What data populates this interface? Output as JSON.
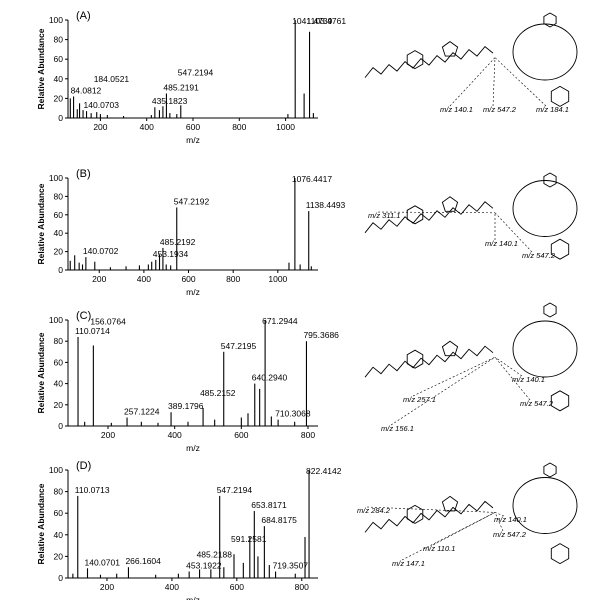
{
  "chart_data": [
    {
      "type": "bar",
      "panel_label": "(A)",
      "xlabel": "m/z",
      "ylabel": "Relative Abundance",
      "xlim": [
        60,
        1140
      ],
      "ylim": [
        0,
        100
      ],
      "xticks": [
        200,
        400,
        600,
        800,
        1000
      ],
      "yticks": [
        0,
        20,
        40,
        60,
        80,
        100
      ],
      "peaks": [
        {
          "mz": 84.0812,
          "intensity": 22,
          "label": "84.0812"
        },
        {
          "mz": 140.0703,
          "intensity": 7,
          "label": "140.0703"
        },
        {
          "mz": 184.0521,
          "intensity": 6,
          "label": "184.0521"
        },
        {
          "mz": 435.1823,
          "intensity": 11,
          "label": "435.1823"
        },
        {
          "mz": 485.2191,
          "intensity": 25,
          "label": "485.2191"
        },
        {
          "mz": 547.2194,
          "intensity": 13,
          "label": "547.2194"
        },
        {
          "mz": 1041.4739,
          "intensity": 100,
          "label": "1041.4739"
        },
        {
          "mz": 1103.4761,
          "intensity": 88,
          "label": "1103.4761"
        },
        {
          "mz": 70,
          "intensity": 20
        },
        {
          "mz": 100,
          "intensity": 9
        },
        {
          "mz": 110,
          "intensity": 15
        },
        {
          "mz": 125,
          "intensity": 8
        },
        {
          "mz": 160,
          "intensity": 5
        },
        {
          "mz": 200,
          "intensity": 4
        },
        {
          "mz": 230,
          "intensity": 3
        },
        {
          "mz": 300,
          "intensity": 2
        },
        {
          "mz": 420,
          "intensity": 3
        },
        {
          "mz": 455,
          "intensity": 8
        },
        {
          "mz": 470,
          "intensity": 12
        },
        {
          "mz": 500,
          "intensity": 5
        },
        {
          "mz": 530,
          "intensity": 4
        },
        {
          "mz": 1010,
          "intensity": 4
        },
        {
          "mz": 1080,
          "intensity": 25
        },
        {
          "mz": 1120,
          "intensity": 5
        }
      ]
    },
    {
      "type": "bar",
      "panel_label": "(B)",
      "xlabel": "m/z",
      "ylabel": "Relative Abundance",
      "xlim": [
        60,
        1180
      ],
      "ylim": [
        0,
        100
      ],
      "xticks": [
        200,
        400,
        600,
        800,
        1000
      ],
      "yticks": [
        0,
        20,
        40,
        60,
        80,
        100
      ],
      "peaks": [
        {
          "mz": 140.0702,
          "intensity": 14,
          "label": "140.0702"
        },
        {
          "mz": 453.1934,
          "intensity": 11,
          "label": "453.1934"
        },
        {
          "mz": 485.2192,
          "intensity": 24,
          "label": "485.2192"
        },
        {
          "mz": 547.2192,
          "intensity": 68,
          "label": "547.2192"
        },
        {
          "mz": 1076.4417,
          "intensity": 100,
          "label": "1076.4417"
        },
        {
          "mz": 1138.4493,
          "intensity": 64,
          "label": "1138.4493"
        },
        {
          "mz": 70,
          "intensity": 10
        },
        {
          "mz": 90,
          "intensity": 16
        },
        {
          "mz": 110,
          "intensity": 8
        },
        {
          "mz": 125,
          "intensity": 6
        },
        {
          "mz": 180,
          "intensity": 9
        },
        {
          "mz": 250,
          "intensity": 3
        },
        {
          "mz": 320,
          "intensity": 4
        },
        {
          "mz": 380,
          "intensity": 5
        },
        {
          "mz": 420,
          "intensity": 6
        },
        {
          "mz": 435,
          "intensity": 9
        },
        {
          "mz": 470,
          "intensity": 17
        },
        {
          "mz": 500,
          "intensity": 6
        },
        {
          "mz": 520,
          "intensity": 5
        },
        {
          "mz": 1050,
          "intensity": 8
        },
        {
          "mz": 1100,
          "intensity": 6
        },
        {
          "mz": 1150,
          "intensity": 4
        }
      ]
    },
    {
      "type": "bar",
      "panel_label": "(C)",
      "xlabel": "m/z",
      "ylabel": "Relative Abundance",
      "xlim": [
        80,
        830
      ],
      "ylim": [
        0,
        100
      ],
      "xticks": [
        200,
        400,
        600,
        800
      ],
      "yticks": [
        0,
        20,
        40,
        60,
        80,
        100
      ],
      "peaks": [
        {
          "mz": 110.0714,
          "intensity": 84,
          "label": "110.0714"
        },
        {
          "mz": 156.0764,
          "intensity": 76,
          "label": "156.0764"
        },
        {
          "mz": 257.1224,
          "intensity": 8,
          "label": "257.1224"
        },
        {
          "mz": 389.1796,
          "intensity": 13,
          "label": "389.1796"
        },
        {
          "mz": 485.2152,
          "intensity": 17,
          "label": "485.2152"
        },
        {
          "mz": 547.2195,
          "intensity": 70,
          "label": "547.2195"
        },
        {
          "mz": 640.294,
          "intensity": 40,
          "label": "640.2940"
        },
        {
          "mz": 671.2944,
          "intensity": 100,
          "label": "671.2944"
        },
        {
          "mz": 710.3068,
          "intensity": 6,
          "label": "710.3068"
        },
        {
          "mz": 795.3686,
          "intensity": 80,
          "label": "795.3686"
        },
        {
          "mz": 130,
          "intensity": 4
        },
        {
          "mz": 210,
          "intensity": 3
        },
        {
          "mz": 300,
          "intensity": 4
        },
        {
          "mz": 350,
          "intensity": 3
        },
        {
          "mz": 440,
          "intensity": 4
        },
        {
          "mz": 520,
          "intensity": 6
        },
        {
          "mz": 600,
          "intensity": 8
        },
        {
          "mz": 620,
          "intensity": 12
        },
        {
          "mz": 655,
          "intensity": 35
        },
        {
          "mz": 690,
          "intensity": 9
        },
        {
          "mz": 760,
          "intensity": 4
        }
      ]
    },
    {
      "type": "bar",
      "panel_label": "(D)",
      "xlabel": "m/z",
      "ylabel": "Relative Abundance",
      "xlim": [
        80,
        850
      ],
      "ylim": [
        0,
        100
      ],
      "xticks": [
        200,
        400,
        600,
        800
      ],
      "yticks": [
        0,
        20,
        40,
        60,
        80,
        100
      ],
      "peaks": [
        {
          "mz": 110.0713,
          "intensity": 76,
          "label": "110.0713"
        },
        {
          "mz": 140.0701,
          "intensity": 9,
          "label": "140.0701"
        },
        {
          "mz": 266.1604,
          "intensity": 10,
          "label": "266.1604"
        },
        {
          "mz": 453.1922,
          "intensity": 6,
          "label": "453.1922"
        },
        {
          "mz": 485.2188,
          "intensity": 8,
          "label": "485.2188"
        },
        {
          "mz": 547.2194,
          "intensity": 76,
          "label": "547.2194"
        },
        {
          "mz": 591.2581,
          "intensity": 22,
          "label": "591.2581"
        },
        {
          "mz": 653.8171,
          "intensity": 62,
          "label": "653.8171"
        },
        {
          "mz": 684.8175,
          "intensity": 48,
          "label": "684.8175"
        },
        {
          "mz": 719.3507,
          "intensity": 6,
          "label": "719.3507"
        },
        {
          "mz": 822.4142,
          "intensity": 100,
          "label": "822.4142"
        },
        {
          "mz": 95,
          "intensity": 4
        },
        {
          "mz": 180,
          "intensity": 3
        },
        {
          "mz": 230,
          "intensity": 4
        },
        {
          "mz": 350,
          "intensity": 3
        },
        {
          "mz": 420,
          "intensity": 4
        },
        {
          "mz": 520,
          "intensity": 8
        },
        {
          "mz": 560,
          "intensity": 10
        },
        {
          "mz": 620,
          "intensity": 14
        },
        {
          "mz": 640,
          "intensity": 38
        },
        {
          "mz": 665,
          "intensity": 20
        },
        {
          "mz": 700,
          "intensity": 12
        },
        {
          "mz": 780,
          "intensity": 4
        },
        {
          "mz": 810,
          "intensity": 38
        }
      ]
    }
  ],
  "structures": [
    {
      "fragments": [
        "m/z 140.1",
        "m/z 547.2",
        "m/z 184.1"
      ]
    },
    {
      "fragments": [
        "m/z 311.1",
        "m/z 140.1",
        "m/z 547.2"
      ]
    },
    {
      "fragments": [
        "m/z 140.1",
        "m/z 257.1",
        "m/z 156.1",
        "m/z 547.2"
      ]
    },
    {
      "fragments": [
        "m/z 284.2",
        "m/z 140.1",
        "m/z 547.2",
        "m/z 110.1",
        "m/z 147.1"
      ]
    }
  ]
}
